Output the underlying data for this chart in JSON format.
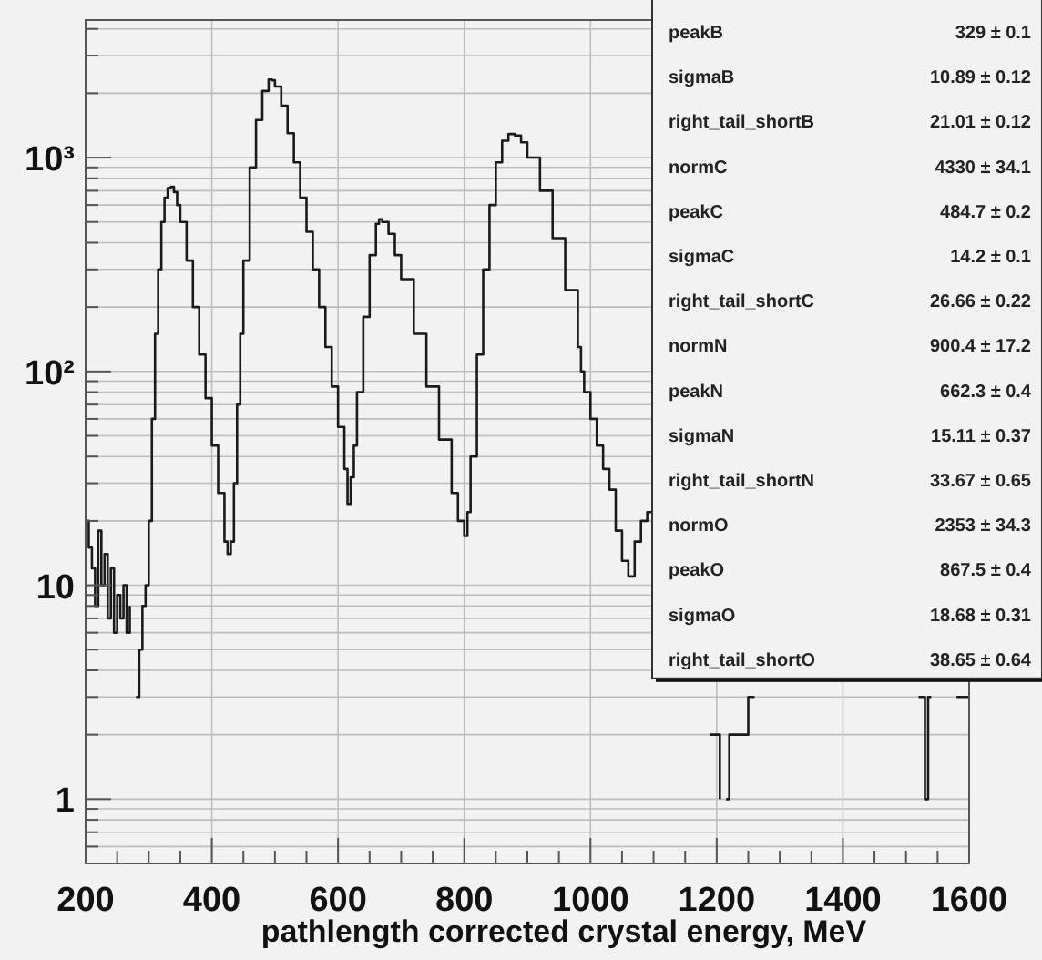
{
  "chart_data": {
    "type": "step",
    "xlabel": "pathlength corrected crystal energy, MeV",
    "log": "y",
    "grid": true,
    "xlim": [
      200,
      1600
    ],
    "ylim": [
      0.5,
      4400
    ],
    "xticks": [
      200,
      {
        "value": 250,
        "label": null
      },
      {
        "value": 300,
        "label": null
      },
      {
        "value": 350,
        "label": null
      },
      400,
      {
        "value": 450,
        "label": null
      },
      {
        "value": 500,
        "label": null
      },
      {
        "value": 550,
        "label": null
      },
      600,
      {
        "value": 650,
        "label": null
      },
      {
        "value": 700,
        "label": null
      },
      {
        "value": 750,
        "label": null
      },
      800,
      {
        "value": 850,
        "label": null
      },
      {
        "value": 900,
        "label": null
      },
      {
        "value": 950,
        "label": null
      },
      1000,
      {
        "value": 1050,
        "label": null
      },
      {
        "value": 1100,
        "label": null
      },
      {
        "value": 1150,
        "label": null
      },
      1200,
      {
        "value": 1250,
        "label": null
      },
      {
        "value": 1300,
        "label": null
      },
      {
        "value": 1350,
        "label": null
      },
      1400,
      {
        "value": 1450,
        "label": null
      },
      {
        "value": 1500,
        "label": null
      },
      {
        "value": 1550,
        "label": null
      },
      1600
    ],
    "yticks": [
      {
        "value": 0.6,
        "label": null
      },
      {
        "value": 0.7,
        "label": null
      },
      {
        "value": 0.8,
        "label": null
      },
      {
        "value": 0.9,
        "label": null
      },
      1,
      {
        "value": 2,
        "label": null
      },
      {
        "value": 3,
        "label": null
      },
      {
        "value": 4,
        "label": null
      },
      {
        "value": 5,
        "label": null
      },
      {
        "value": 6,
        "label": null
      },
      {
        "value": 7,
        "label": null
      },
      {
        "value": 8,
        "label": null
      },
      {
        "value": 9,
        "label": null
      },
      10,
      {
        "value": 20,
        "label": null
      },
      {
        "value": 30,
        "label": null
      },
      {
        "value": 40,
        "label": null
      },
      {
        "value": 50,
        "label": null
      },
      {
        "value": 60,
        "label": null
      },
      {
        "value": 70,
        "label": null
      },
      {
        "value": 80,
        "label": null
      },
      {
        "value": 90,
        "label": null
      },
      {
        "value": 100,
        "label": "10²"
      },
      {
        "value": 200,
        "label": null
      },
      {
        "value": 300,
        "label": null
      },
      {
        "value": 400,
        "label": null
      },
      {
        "value": 500,
        "label": null
      },
      {
        "value": 600,
        "label": null
      },
      {
        "value": 700,
        "label": null
      },
      {
        "value": 800,
        "label": null
      },
      {
        "value": 900,
        "label": null
      },
      {
        "value": 1000,
        "label": "10³"
      },
      {
        "value": 2000,
        "label": null
      },
      {
        "value": 3000,
        "label": null
      },
      {
        "value": 4000,
        "label": null
      }
    ],
    "annotations": [
      "peakB 329 ± 0.1",
      "sigmaB 10.89 ± 0.12",
      "right_tail_shortB 21.01 ± 0.12",
      "normC 4330 ± 34.1",
      "peakC 484.7 ± 0.2",
      "sigmaC 14.2 ± 0.1",
      "right_tail_shortC 26.66 ± 0.22",
      "normN 900.4 ± 17.2",
      "peakN 662.3 ± 0.4",
      "sigmaN 15.11 ± 0.37",
      "right_tail_shortN 33.67 ± 0.65",
      "normO 2353 ± 34.3",
      "peakO 867.5 ± 0.4",
      "sigmaO 18.68 ± 0.31",
      "right_tail_shortO 38.65 ± 0.64"
    ],
    "series": [
      {
        "color": "#1a1a1a",
        "x": [
          200,
          205,
          210,
          215,
          220,
          225,
          230,
          235,
          240,
          245,
          250,
          255,
          260,
          265,
          270,
          275,
          280,
          285,
          290,
          295,
          300,
          305,
          310,
          315,
          320,
          325,
          330,
          335,
          340,
          345,
          350,
          360,
          370,
          380,
          390,
          400,
          410,
          420,
          425,
          430,
          435,
          440,
          445,
          450,
          460,
          470,
          480,
          490,
          495,
          500,
          510,
          520,
          530,
          540,
          550,
          560,
          570,
          580,
          590,
          600,
          610,
          615,
          620,
          625,
          630,
          640,
          650,
          660,
          665,
          670,
          680,
          690,
          700,
          720,
          740,
          760,
          780,
          790,
          800,
          805,
          810,
          820,
          830,
          840,
          850,
          860,
          870,
          880,
          890,
          900,
          920,
          940,
          960,
          980,
          985,
          990,
          1000,
          1010,
          1020,
          1030,
          1040,
          1050,
          1060,
          1070,
          1080,
          1090,
          1100,
          1105,
          1190,
          1195,
          1200,
          1205,
          1210,
          1215,
          1220,
          1240,
          1250,
          1260,
          1265,
          1520,
          1530,
          1535,
          1540,
          1545,
          1580,
          1600
        ],
        "values": [
          20,
          15,
          12,
          8,
          18,
          10,
          14,
          7,
          12,
          6,
          9,
          7,
          10,
          6,
          8,
          null,
          3,
          5,
          8,
          10,
          20,
          60,
          150,
          300,
          500,
          650,
          720,
          730,
          690,
          600,
          500,
          330,
          200,
          120,
          75,
          45,
          27,
          16,
          14,
          16,
          30,
          70,
          150,
          330,
          900,
          1500,
          2050,
          2320,
          2300,
          2150,
          1750,
          1300,
          950,
          650,
          450,
          300,
          200,
          130,
          85,
          55,
          35,
          24,
          32,
          45,
          80,
          180,
          350,
          490,
          515,
          500,
          440,
          350,
          270,
          150,
          85,
          48,
          27,
          20,
          17,
          22,
          40,
          120,
          300,
          600,
          950,
          1200,
          1290,
          1270,
          1180,
          1000,
          700,
          420,
          240,
          130,
          100,
          80,
          60,
          45,
          35,
          28,
          18,
          13,
          11,
          16,
          20,
          22,
          18,
          null,
          2,
          2,
          2,
          1,
          null,
          1,
          2,
          2,
          3,
          3,
          null,
          3,
          1,
          3,
          3,
          null,
          3,
          3
        ]
      }
    ]
  }
}
